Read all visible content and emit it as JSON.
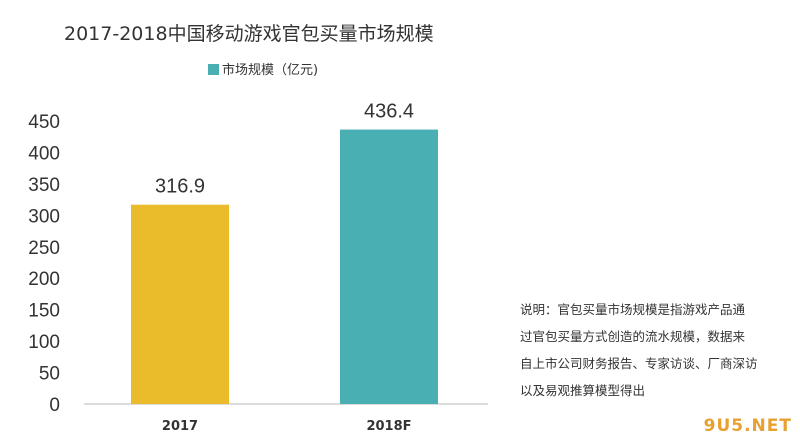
{
  "chart_data": {
    "type": "bar",
    "title": "2017-2018中国移动游戏官包买量市场规模",
    "categories": [
      "2017",
      "2018F"
    ],
    "series": [
      {
        "name": "市场规模（亿元)",
        "values": [
          316.9,
          436.4
        ],
        "data_labels": [
          "316.9",
          "436.4"
        ],
        "colors": [
          "#eabb2b",
          "#4aafb2"
        ]
      }
    ],
    "legend_color": "#4aafb2",
    "ylim": [
      0,
      450
    ],
    "yticks": [
      0,
      50,
      100,
      150,
      200,
      250,
      300,
      350,
      400,
      450
    ],
    "ytick_labels": [
      "0",
      "50",
      "100",
      "150",
      "200",
      "250",
      "300",
      "350",
      "400",
      "450"
    ],
    "grid": false,
    "legend_position": "top-left",
    "note_lines": [
      "说明：官包买量市场规模是指游戏产品通",
      "过官包买量方式创造的流水规模，数据来",
      "自上市公司财务报告、专家访谈、厂商深访",
      "以及易观推算模型得出"
    ]
  },
  "watermark": "9U5.NET"
}
